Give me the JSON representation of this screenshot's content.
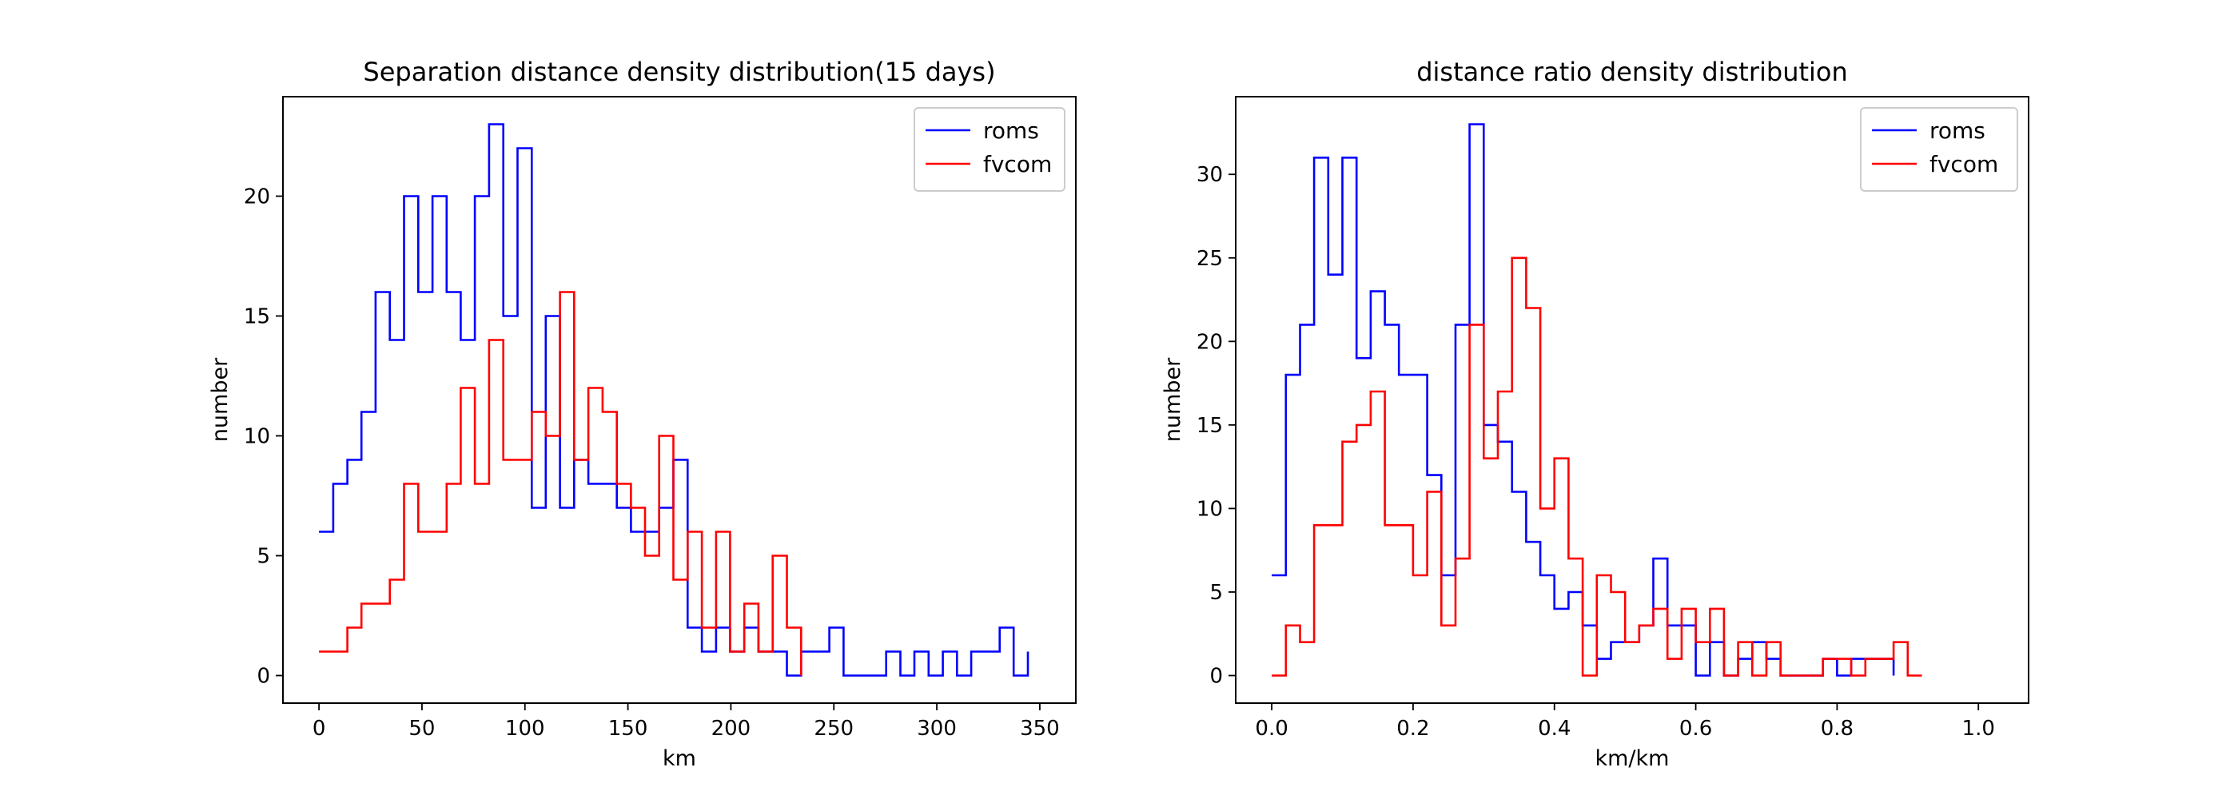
{
  "colors": {
    "roms": "#0000ff",
    "fvcom": "#ff0000",
    "axis": "#000000",
    "legend_border": "#cccccc"
  },
  "chart_data": [
    {
      "type": "line",
      "drawstyle": "steps-post",
      "title": "Separation distance density distribution(15 days)",
      "xlabel": "km",
      "ylabel": "number",
      "xlim": [
        -17.5,
        367.5
      ],
      "ylim": [
        -1.15,
        24.15
      ],
      "xticks": [
        0,
        50,
        100,
        150,
        200,
        250,
        300,
        350
      ],
      "yticks": [
        0,
        5,
        10,
        15,
        20
      ],
      "legend": "top-right",
      "grid": false,
      "series": [
        {
          "name": "roms",
          "x": [
            0,
            6.9,
            13.8,
            20.6,
            27.5,
            34.4,
            41.3,
            48.2,
            55.1,
            62,
            68.8,
            75.7,
            82.6,
            89.5,
            96.4,
            103.3,
            110.1,
            117,
            123.9,
            130.8,
            137.7,
            144.6,
            151.5,
            158.3,
            165.2,
            172.1,
            179,
            185.9,
            192.8,
            199.6,
            206.5,
            213.4,
            220.3,
            227.2,
            234.1,
            241,
            247.8,
            254.7,
            261.6,
            268.5,
            275.4,
            282.3,
            289.1,
            296,
            302.9,
            309.8,
            316.7,
            323.6,
            330.5,
            337.3,
            344.2
          ],
          "values": [
            6,
            8,
            9,
            11,
            16,
            14,
            20,
            16,
            20,
            16,
            14,
            20,
            23,
            15,
            22,
            7,
            15,
            7,
            9,
            8,
            8,
            7,
            6,
            6,
            7,
            9,
            2,
            1,
            2,
            1,
            2,
            1,
            1,
            0,
            1,
            1,
            2,
            0,
            0,
            0,
            1,
            0,
            1,
            0,
            1,
            0,
            1,
            1,
            2,
            0,
            1
          ]
        },
        {
          "name": "fvcom",
          "x": [
            0,
            6.9,
            13.8,
            20.6,
            27.5,
            34.4,
            41.3,
            48.2,
            55.1,
            62,
            68.8,
            75.7,
            82.6,
            89.5,
            96.4,
            103.3,
            110.1,
            117,
            123.9,
            130.8,
            137.7,
            144.6,
            151.5,
            158.3,
            165.2,
            172.1,
            179,
            185.9,
            192.8,
            199.6,
            206.5,
            213.4,
            220.3,
            227.2,
            234.1
          ],
          "values": [
            1,
            1,
            2,
            3,
            3,
            4,
            8,
            6,
            6,
            8,
            12,
            8,
            14,
            9,
            9,
            11,
            10,
            16,
            9,
            12,
            11,
            8,
            7,
            5,
            10,
            4,
            6,
            2,
            6,
            1,
            3,
            1,
            5,
            2,
            0
          ]
        }
      ]
    },
    {
      "type": "line",
      "drawstyle": "steps-post",
      "title": "distance ratio density distribution",
      "xlabel": "km/km",
      "ylabel": "number",
      "xlim": [
        -0.051,
        1.071
      ],
      "ylim": [
        -1.65,
        34.65
      ],
      "xticks": [
        0.0,
        0.2,
        0.4,
        0.6,
        0.8,
        1.0
      ],
      "yticks": [
        0,
        5,
        10,
        15,
        20,
        25,
        30
      ],
      "legend": "top-right",
      "grid": false,
      "series": [
        {
          "name": "roms",
          "x": [
            0,
            0.02,
            0.04,
            0.06,
            0.08,
            0.1,
            0.12,
            0.14,
            0.16,
            0.18,
            0.2,
            0.22,
            0.24,
            0.26,
            0.28,
            0.3,
            0.32,
            0.34,
            0.36,
            0.38,
            0.4,
            0.42,
            0.44,
            0.46,
            0.48,
            0.5,
            0.52,
            0.54,
            0.56,
            0.58,
            0.6,
            0.62,
            0.64,
            0.66,
            0.68,
            0.7,
            0.72,
            0.74,
            0.76,
            0.78,
            0.8,
            0.82,
            0.84,
            0.86,
            0.88
          ],
          "values": [
            6,
            18,
            21,
            31,
            24,
            31,
            19,
            23,
            21,
            18,
            18,
            12,
            6,
            21,
            33,
            15,
            14,
            11,
            8,
            6,
            4,
            5,
            3,
            1,
            2,
            2,
            3,
            7,
            3,
            3,
            0,
            2,
            0,
            1,
            2,
            1,
            0,
            0,
            0,
            1,
            0,
            1,
            1,
            1,
            0
          ]
        },
        {
          "name": "fvcom",
          "x": [
            0,
            0.02,
            0.04,
            0.06,
            0.08,
            0.1,
            0.12,
            0.14,
            0.16,
            0.18,
            0.2,
            0.22,
            0.24,
            0.26,
            0.28,
            0.3,
            0.32,
            0.34,
            0.36,
            0.38,
            0.4,
            0.42,
            0.44,
            0.46,
            0.48,
            0.5,
            0.52,
            0.54,
            0.56,
            0.58,
            0.6,
            0.62,
            0.64,
            0.66,
            0.68,
            0.7,
            0.72,
            0.74,
            0.76,
            0.78,
            0.8,
            0.82,
            0.84,
            0.86,
            0.88,
            0.9,
            0.92
          ],
          "values": [
            0,
            3,
            2,
            9,
            9,
            14,
            15,
            17,
            9,
            9,
            6,
            11,
            3,
            7,
            21,
            13,
            17,
            25,
            22,
            10,
            13,
            7,
            0,
            6,
            5,
            2,
            3,
            4,
            1,
            4,
            2,
            4,
            0,
            2,
            0,
            2,
            0,
            0,
            0,
            1,
            1,
            0,
            1,
            1,
            2,
            0,
            0
          ]
        }
      ]
    }
  ]
}
